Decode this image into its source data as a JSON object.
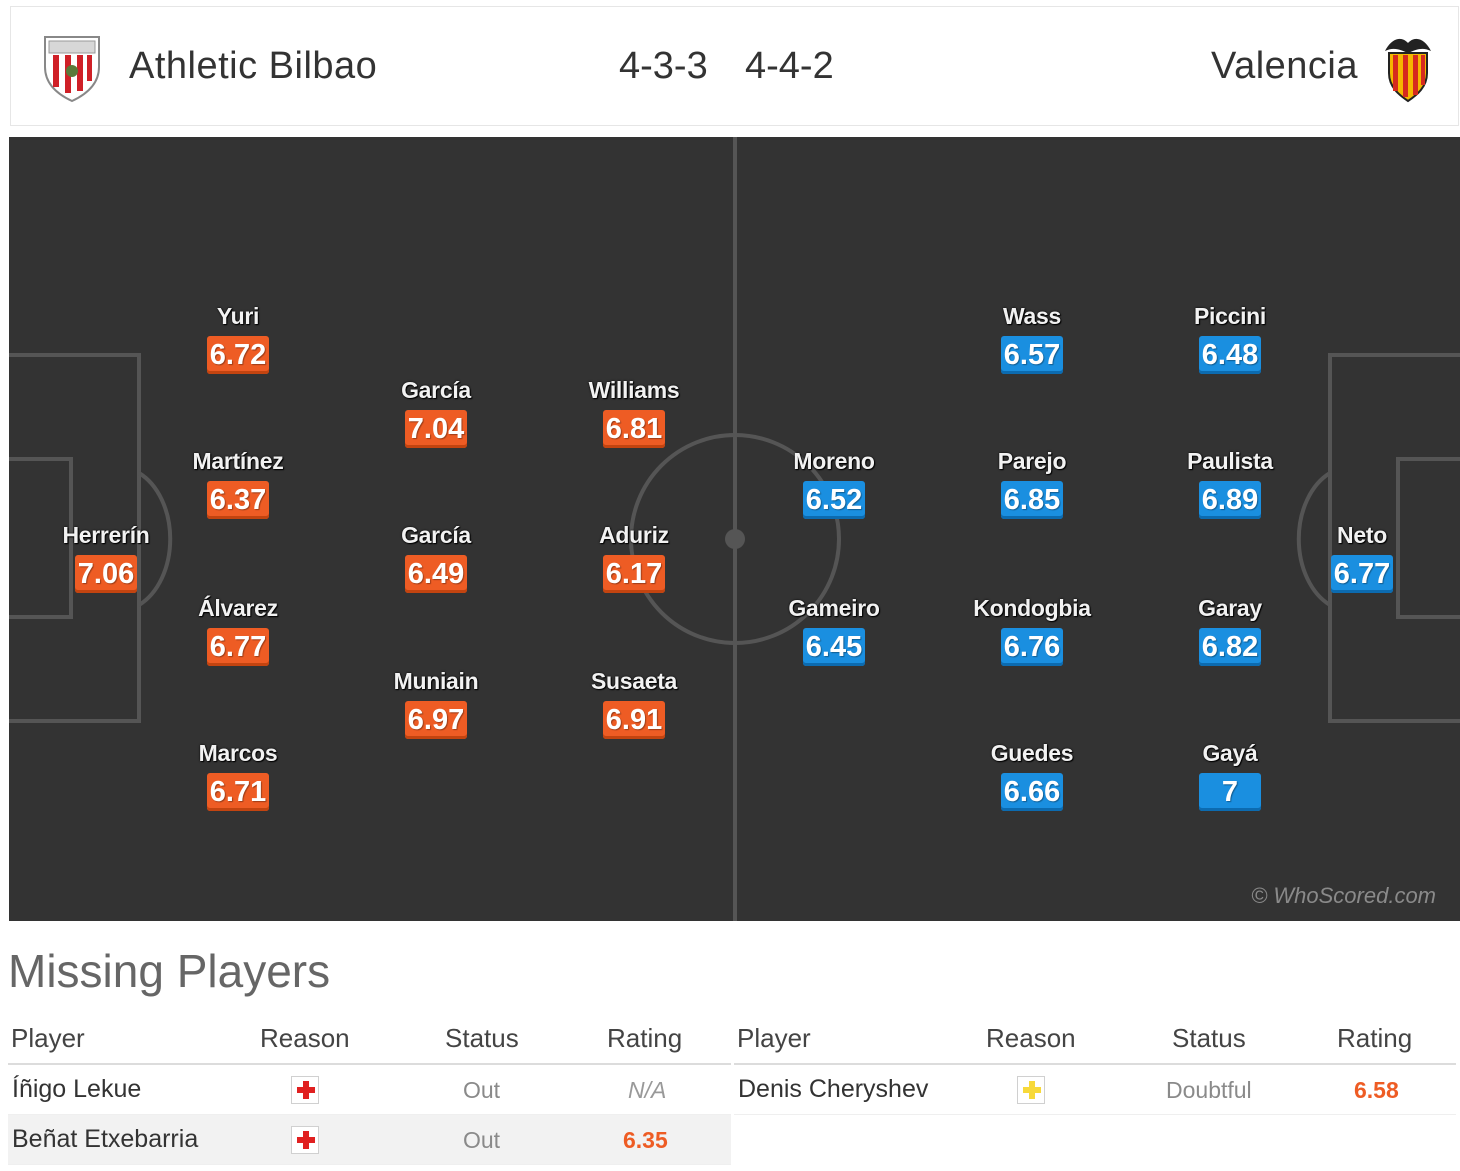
{
  "header": {
    "home_team": "Athletic Bilbao",
    "away_team": "Valencia",
    "home_formation": "4-3-3",
    "away_formation": "4-4-2",
    "home_crest_icon": "athletic-bilbao-crest-icon",
    "away_crest_icon": "valencia-bat-crest-icon"
  },
  "pitch": {
    "watermark": "© WhoScored.com",
    "home_players": [
      {
        "name": "Herrerín",
        "rating": "7.06"
      },
      {
        "name": "Yuri",
        "rating": "6.72"
      },
      {
        "name": "Martínez",
        "rating": "6.37"
      },
      {
        "name": "Álvarez",
        "rating": "6.77"
      },
      {
        "name": "Marcos",
        "rating": "6.71"
      },
      {
        "name": "García",
        "rating": "7.04"
      },
      {
        "name": "García",
        "rating": "6.49"
      },
      {
        "name": "Muniain",
        "rating": "6.97"
      },
      {
        "name": "Williams",
        "rating": "6.81"
      },
      {
        "name": "Aduriz",
        "rating": "6.17"
      },
      {
        "name": "Susaeta",
        "rating": "6.91"
      }
    ],
    "away_players": [
      {
        "name": "Moreno",
        "rating": "6.52"
      },
      {
        "name": "Gameiro",
        "rating": "6.45"
      },
      {
        "name": "Wass",
        "rating": "6.57"
      },
      {
        "name": "Parejo",
        "rating": "6.85"
      },
      {
        "name": "Kondogbia",
        "rating": "6.76"
      },
      {
        "name": "Guedes",
        "rating": "6.66"
      },
      {
        "name": "Piccini",
        "rating": "6.48"
      },
      {
        "name": "Paulista",
        "rating": "6.89"
      },
      {
        "name": "Garay",
        "rating": "6.82"
      },
      {
        "name": "Gayá",
        "rating": "7"
      },
      {
        "name": "Neto",
        "rating": "6.77"
      }
    ],
    "colors": {
      "pitch": "#333333",
      "home_rating": "#ee5c24",
      "away_rating": "#1a8fe0"
    }
  },
  "missing": {
    "title": "Missing Players",
    "columns": {
      "player": "Player",
      "reason": "Reason",
      "status": "Status",
      "rating": "Rating"
    },
    "home": [
      {
        "player": "Íñigo Lekue",
        "reason_icon": "injury-cross-icon",
        "status": "Out",
        "rating": "N/A"
      },
      {
        "player": "Beñat Etxebarria",
        "reason_icon": "injury-cross-icon",
        "status": "Out",
        "rating": "6.35"
      }
    ],
    "away": [
      {
        "player": "Denis Cheryshev",
        "reason_icon": "doubtful-cross-icon",
        "status": "Doubtful",
        "rating": "6.58"
      }
    ]
  }
}
